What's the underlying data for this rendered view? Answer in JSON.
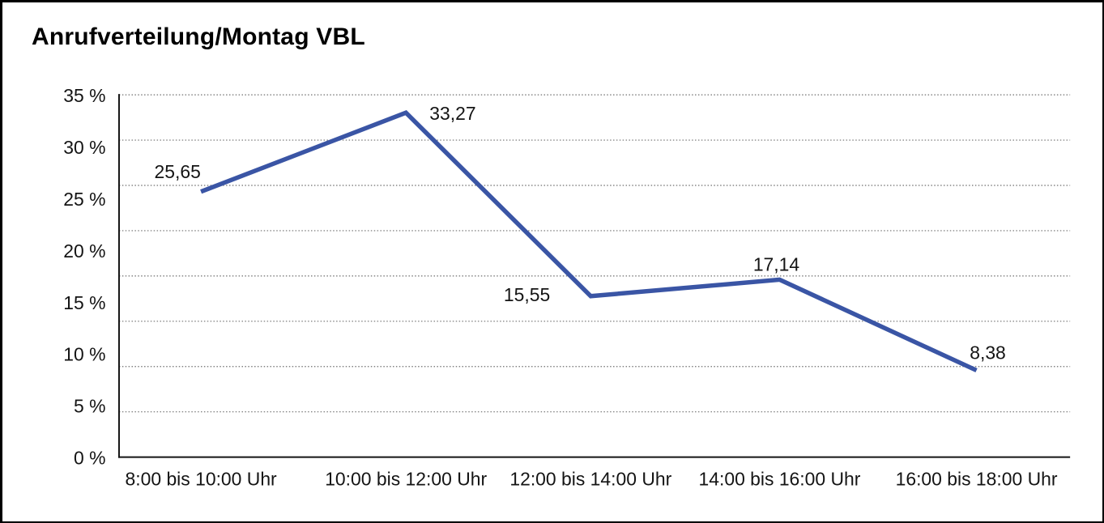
{
  "title": "Anrufverteilung/Montag VBL",
  "chart_data": {
    "type": "line",
    "title": "Anrufverteilung/Montag VBL",
    "categories": [
      "8:00 bis 10:00 Uhr",
      "10:00 bis 12:00 Uhr",
      "12:00 bis 14:00 Uhr",
      "14:00 bis 16:00 Uhr",
      "16:00 bis 18:00 Uhr"
    ],
    "values": [
      25.65,
      33.27,
      15.55,
      17.14,
      8.38
    ],
    "value_labels": [
      "25,65",
      "33,27",
      "15,55",
      "17,14",
      "8,38"
    ],
    "y_ticks": [
      0,
      5,
      10,
      15,
      20,
      25,
      30,
      35
    ],
    "y_tick_labels": [
      "0 %",
      "5 %",
      "10 %",
      "15 %",
      "20 %",
      "25 %",
      "30 %",
      "35 %"
    ],
    "ylim": [
      0,
      35
    ],
    "xlabel": "",
    "ylabel": "",
    "legend": "none",
    "grid": "horizontal-dotted",
    "grid_divisions": 8,
    "line_color": "#3A55A5",
    "axis_color": "#141414",
    "gridline_color": "#6e6e6e",
    "text_color": "#141414",
    "background_color": "#ffffff"
  }
}
